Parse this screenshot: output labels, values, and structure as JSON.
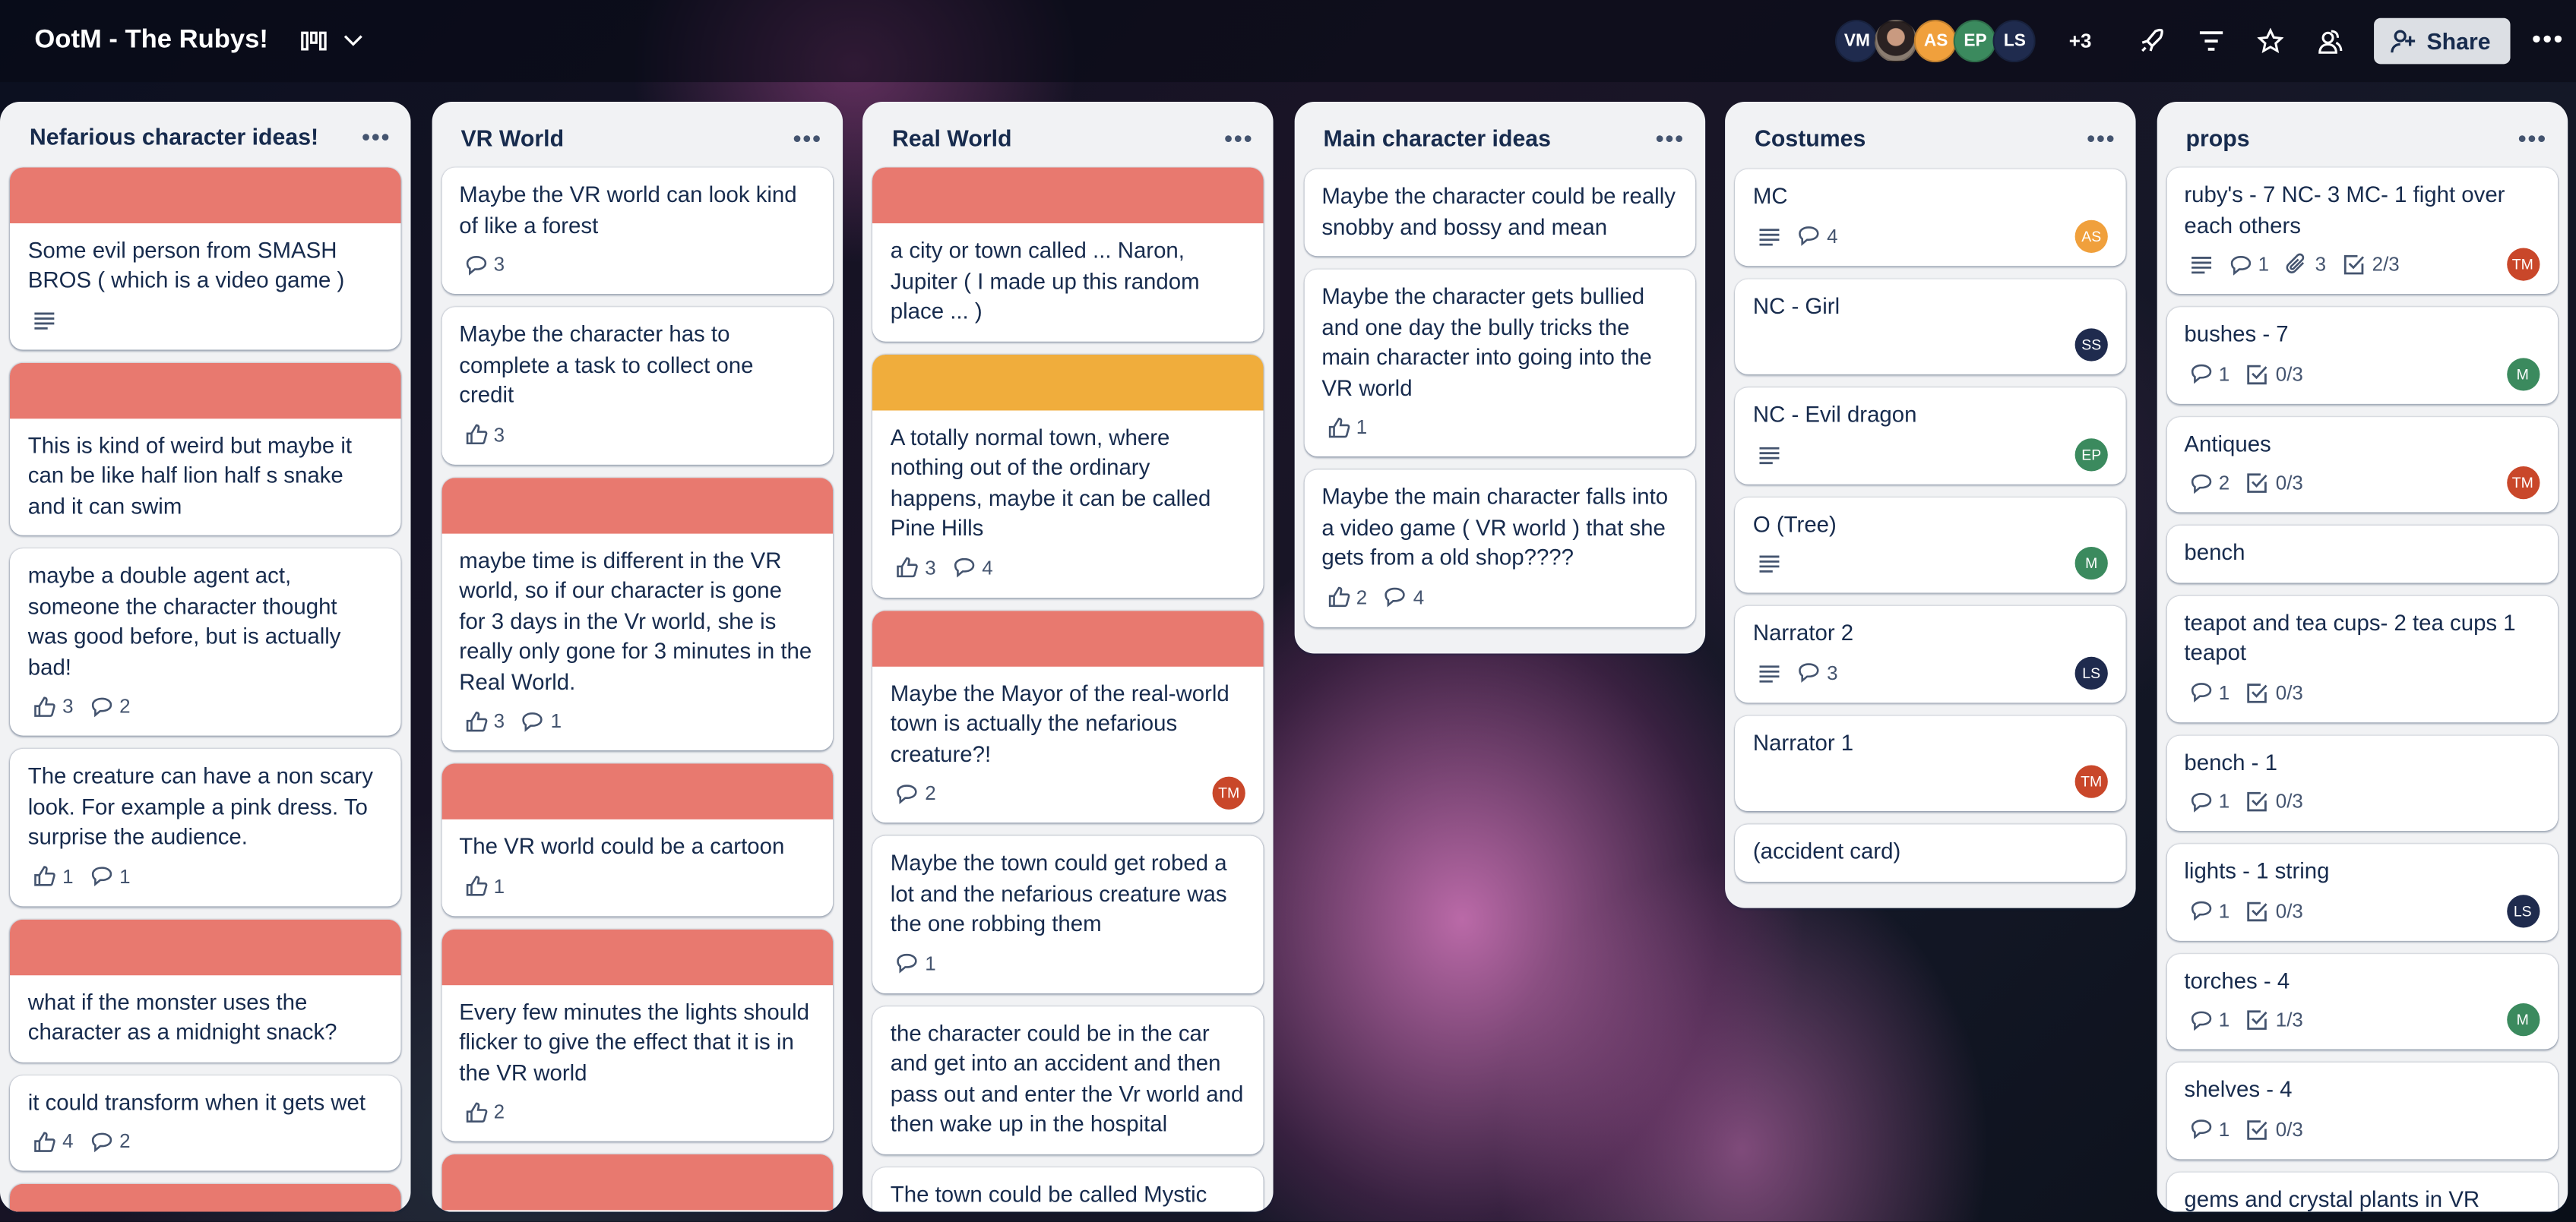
{
  "header": {
    "board_title": "OotM - The Rubys!",
    "members": [
      {
        "initials": "VM",
        "color": "#1f2b4e"
      },
      {
        "initials": "",
        "color": "photo"
      },
      {
        "initials": "AS",
        "color": "#f0a03c"
      },
      {
        "initials": "EP",
        "color": "#3b8a5e"
      },
      {
        "initials": "LS",
        "color": "#1f2b4e"
      }
    ],
    "more_members": "+3",
    "share_label": "Share"
  },
  "colors": {
    "red_cover": "#e8796f",
    "orange_cover": "#f0ad3c",
    "TM": "#c9472a",
    "M": "#3b8a5e",
    "LS": "#1f2b4e",
    "SS": "#1f2b4e",
    "AS": "#f0a03c",
    "EP": "#3b8a5e"
  },
  "lists": [
    {
      "title": "Nefarious character ideas!",
      "cards": [
        {
          "cover": "red",
          "title": "Some evil person from SMASH BROS ( which is a video game )",
          "badges": [
            {
              "type": "description"
            }
          ]
        },
        {
          "cover": "red",
          "title": "This is kind of weird but maybe it can be like half lion half s snake and it can swim",
          "badges": []
        },
        {
          "title": "maybe a double agent act, someone the character thought was good before, but is actually bad!",
          "badges": [
            {
              "type": "like",
              "value": "3"
            },
            {
              "type": "comment",
              "value": "2"
            }
          ]
        },
        {
          "title": "The creature can have a non scary look. For example a pink dress. To surprise the audience.",
          "badges": [
            {
              "type": "like",
              "value": "1"
            },
            {
              "type": "comment",
              "value": "1"
            }
          ]
        },
        {
          "cover": "red",
          "title": "what if the monster uses the character as a midnight snack?",
          "badges": []
        },
        {
          "title": "it could transform when it gets wet",
          "badges": [
            {
              "type": "like",
              "value": "4"
            },
            {
              "type": "comment",
              "value": "2"
            }
          ]
        },
        {
          "cover": "red",
          "title": "",
          "badges": []
        }
      ]
    },
    {
      "title": "VR World",
      "cards": [
        {
          "title": "Maybe the VR world can look kind of like a forest",
          "badges": [
            {
              "type": "comment",
              "value": "3"
            }
          ]
        },
        {
          "title": "Maybe the character has to complete a task to collect one credit",
          "badges": [
            {
              "type": "like",
              "value": "3"
            }
          ]
        },
        {
          "cover": "red",
          "title": "maybe time is different in the VR world, so if our character is gone for 3 days in the Vr world, she is really only gone for 3 minutes in the Real World.",
          "badges": [
            {
              "type": "like",
              "value": "3"
            },
            {
              "type": "comment",
              "value": "1"
            }
          ]
        },
        {
          "cover": "red",
          "title": "The VR world could be a cartoon",
          "badges": [
            {
              "type": "like",
              "value": "1"
            }
          ]
        },
        {
          "cover": "red",
          "title": "Every few minutes the lights should flicker to give the effect that it is in the VR world",
          "badges": [
            {
              "type": "like",
              "value": "2"
            }
          ]
        },
        {
          "cover": "red",
          "title": "",
          "badges": []
        }
      ]
    },
    {
      "title": "Real World",
      "cards": [
        {
          "cover": "red",
          "title": "a city or town called ... Naron, Jupiter ( I made up this random place ... )",
          "badges": []
        },
        {
          "cover": "orange",
          "title": "A totally normal town, where nothing out of the ordinary happens, maybe it can be called Pine Hills",
          "badges": [
            {
              "type": "like",
              "value": "3"
            },
            {
              "type": "comment",
              "value": "4"
            }
          ]
        },
        {
          "cover": "red",
          "title": "Maybe the Mayor of the real-world town is actually the nefarious creature?!",
          "badges": [
            {
              "type": "comment",
              "value": "2"
            }
          ],
          "member": "TM"
        },
        {
          "title": "Maybe the town could get robed a lot and the nefarious creature was the one robbing them",
          "badges": [
            {
              "type": "comment",
              "value": "1"
            }
          ]
        },
        {
          "title": "the character could be in the car and get into an accident and then pass out and enter the Vr world and then wake up in the hospital",
          "badges": []
        },
        {
          "title": "The town could be called Mystic",
          "badges": []
        }
      ]
    },
    {
      "title": "Main character ideas",
      "cards": [
        {
          "title": "Maybe the character could be really snobby and bossy and mean",
          "badges": []
        },
        {
          "title": "Maybe the character gets bullied and one day the bully tricks the main character into going into the VR world",
          "badges": [
            {
              "type": "like",
              "value": "1"
            }
          ]
        },
        {
          "title": "Maybe the main character falls into a video game ( VR world ) that she gets from a old shop????",
          "badges": [
            {
              "type": "like",
              "value": "2"
            },
            {
              "type": "comment",
              "value": "4"
            }
          ]
        }
      ]
    },
    {
      "title": "Costumes",
      "cards": [
        {
          "title": "MC",
          "badges": [
            {
              "type": "description"
            },
            {
              "type": "comment",
              "value": "4"
            }
          ],
          "member": "AS"
        },
        {
          "title": "NC - Girl",
          "badges": [],
          "member": "SS"
        },
        {
          "title": "NC - Evil dragon",
          "badges": [
            {
              "type": "description"
            }
          ],
          "member": "EP"
        },
        {
          "title": "O (Tree)",
          "badges": [
            {
              "type": "description"
            }
          ],
          "member": "M"
        },
        {
          "title": "Narrator 2",
          "badges": [
            {
              "type": "description"
            },
            {
              "type": "comment",
              "value": "3"
            }
          ],
          "member": "LS"
        },
        {
          "title": "Narrator 1",
          "badges": [],
          "member": "TM"
        },
        {
          "title": "(accident card)",
          "badges": []
        }
      ]
    },
    {
      "title": "props",
      "cards": [
        {
          "title": "ruby's - 7 NC- 3 MC- 1 fight over each others",
          "badges": [
            {
              "type": "description"
            },
            {
              "type": "comment",
              "value": "1"
            },
            {
              "type": "attachment",
              "value": "3"
            },
            {
              "type": "checklist",
              "value": "2/3"
            }
          ],
          "member": "TM"
        },
        {
          "title": "bushes - 7",
          "badges": [
            {
              "type": "comment",
              "value": "1"
            },
            {
              "type": "checklist",
              "value": "0/3"
            }
          ],
          "member": "M"
        },
        {
          "title": "Antiques",
          "badges": [
            {
              "type": "comment",
              "value": "2"
            },
            {
              "type": "checklist",
              "value": "0/3"
            }
          ],
          "member": "TM"
        },
        {
          "title": "bench",
          "badges": []
        },
        {
          "title": "teapot and tea cups- 2 tea cups 1 teapot",
          "badges": [
            {
              "type": "comment",
              "value": "1"
            },
            {
              "type": "checklist",
              "value": "0/3"
            }
          ]
        },
        {
          "title": "bench - 1",
          "badges": [
            {
              "type": "comment",
              "value": "1"
            },
            {
              "type": "checklist",
              "value": "0/3"
            }
          ]
        },
        {
          "title": "lights - 1 string",
          "badges": [
            {
              "type": "comment",
              "value": "1"
            },
            {
              "type": "checklist",
              "value": "0/3"
            }
          ],
          "member": "LS"
        },
        {
          "title": "torches - 4",
          "badges": [
            {
              "type": "comment",
              "value": "1"
            },
            {
              "type": "checklist",
              "value": "1/3"
            }
          ],
          "member": "M"
        },
        {
          "title": "shelves - 4",
          "badges": [
            {
              "type": "comment",
              "value": "1"
            },
            {
              "type": "checklist",
              "value": "0/3"
            }
          ]
        },
        {
          "title": "gems and crystal plants in VR",
          "badges": []
        }
      ]
    }
  ]
}
